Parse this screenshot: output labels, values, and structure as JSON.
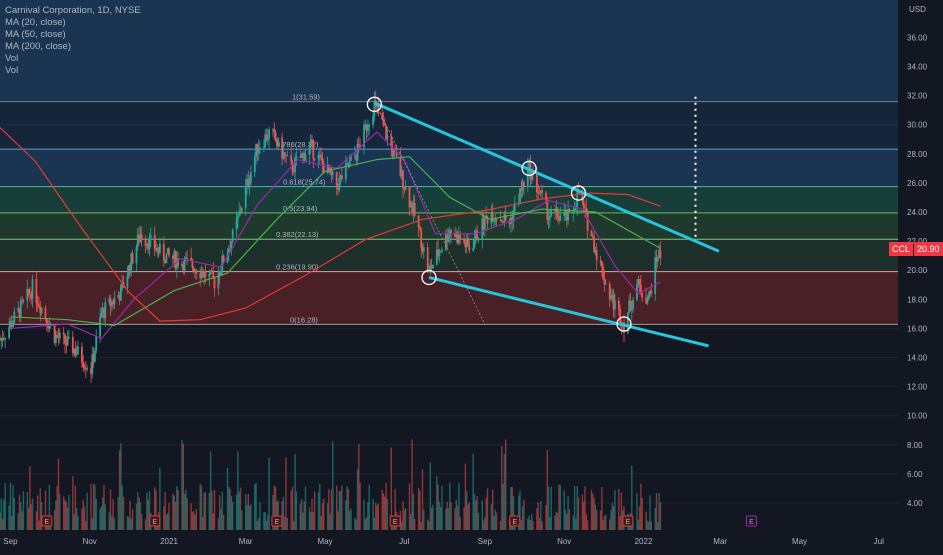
{
  "header": {
    "symbol_title": "Carnival Corporation, 1D, NYSE",
    "indicators": [
      "MA (20, close)",
      "MA (50, close)",
      "MA (200, close)",
      "Vol",
      "Vol"
    ],
    "currency": "USD",
    "ticker": "CCL",
    "last_price": "20.90"
  },
  "colors": {
    "background": "#131722",
    "up_candle": "#26a69a",
    "down_candle": "#ef5350",
    "ma20": "#9c27b0",
    "ma50": "#4caf50",
    "ma200": "#e53935",
    "trendline": "#26c6da",
    "zone_blue": "#1f4e79",
    "zone_teal": "#1b5e4a",
    "zone_green": "#2e5b38",
    "zone_red": "#6d1f24",
    "price_badge": "#f23645"
  },
  "chart_data": {
    "type": "candlestick",
    "title": "Carnival Corporation, 1D, NYSE",
    "y_axis": {
      "ticks": [
        "4.00",
        "6.00",
        "8.00",
        "10.00",
        "12.00",
        "14.00",
        "16.00",
        "18.00",
        "20.00",
        "22.00",
        "24.00",
        "26.00",
        "28.00",
        "30.00",
        "32.00",
        "34.00",
        "36.00"
      ],
      "range": [
        2.6,
        37.2
      ]
    },
    "x_axis": {
      "ticks": [
        "Sep",
        "Nov",
        "2021",
        "Mar",
        "May",
        "Jul",
        "Sep",
        "Nov",
        "2022",
        "Mar",
        "May",
        "Jul"
      ],
      "range": [
        "2020-08-24",
        "2022-07-20"
      ]
    },
    "fibonacci_levels": [
      {
        "label": "1(31.59)",
        "value": 31.59
      },
      {
        "label": "0.786(28.32)",
        "value": 28.32
      },
      {
        "label": "0.618(25.74)",
        "value": 25.74
      },
      {
        "label": "0.5(23.94)",
        "value": 23.94
      },
      {
        "label": "0.382(22.13)",
        "value": 22.13
      },
      {
        "label": "0.236(19.90)",
        "value": 19.9
      },
      {
        "label": "0(16.28)",
        "value": 16.28
      }
    ],
    "price_path": [
      {
        "date": "2020-08-24",
        "price": 15.2
      },
      {
        "date": "2020-09-10",
        "price": 17.5
      },
      {
        "date": "2020-09-18",
        "price": 18.8
      },
      {
        "date": "2020-10-05",
        "price": 15.5
      },
      {
        "date": "2020-10-20",
        "price": 14.6
      },
      {
        "date": "2020-11-02",
        "price": 13.2
      },
      {
        "date": "2020-11-10",
        "price": 17.0
      },
      {
        "date": "2020-11-25",
        "price": 18.5
      },
      {
        "date": "2020-12-10",
        "price": 22.5
      },
      {
        "date": "2020-12-28",
        "price": 21.0
      },
      {
        "date": "2021-01-20",
        "price": 20.3
      },
      {
        "date": "2021-02-05",
        "price": 19.2
      },
      {
        "date": "2021-02-20",
        "price": 22.5
      },
      {
        "date": "2021-03-10",
        "price": 28.5
      },
      {
        "date": "2021-03-20",
        "price": 29.5
      },
      {
        "date": "2021-04-05",
        "price": 27.0
      },
      {
        "date": "2021-04-20",
        "price": 28.5
      },
      {
        "date": "2021-05-10",
        "price": 25.8
      },
      {
        "date": "2021-05-25",
        "price": 28.0
      },
      {
        "date": "2021-06-08",
        "price": 31.4
      },
      {
        "date": "2021-06-25",
        "price": 27.5
      },
      {
        "date": "2021-07-10",
        "price": 23.5
      },
      {
        "date": "2021-07-20",
        "price": 19.9
      },
      {
        "date": "2021-08-05",
        "price": 22.8
      },
      {
        "date": "2021-08-20",
        "price": 21.5
      },
      {
        "date": "2021-09-05",
        "price": 24.0
      },
      {
        "date": "2021-09-20",
        "price": 23.3
      },
      {
        "date": "2021-10-05",
        "price": 27.0
      },
      {
        "date": "2021-10-20",
        "price": 23.8
      },
      {
        "date": "2021-11-05",
        "price": 23.6
      },
      {
        "date": "2021-11-12",
        "price": 25.3
      },
      {
        "date": "2021-11-25",
        "price": 21.5
      },
      {
        "date": "2021-12-05",
        "price": 18.5
      },
      {
        "date": "2021-12-17",
        "price": 16.3
      },
      {
        "date": "2021-12-27",
        "price": 19.0
      },
      {
        "date": "2022-01-05",
        "price": 18.0
      },
      {
        "date": "2022-01-12",
        "price": 21.2
      },
      {
        "date": "2022-01-14",
        "price": 20.9
      }
    ],
    "moving_averages": [
      {
        "name": "MA (20, close)",
        "points": [
          {
            "date": "2020-09-01",
            "price": 16.0
          },
          {
            "date": "2020-10-15",
            "price": 16.3
          },
          {
            "date": "2020-11-10",
            "price": 15.3
          },
          {
            "date": "2020-12-05",
            "price": 18.0
          },
          {
            "date": "2021-01-10",
            "price": 20.8
          },
          {
            "date": "2021-02-10",
            "price": 20.2
          },
          {
            "date": "2021-03-10",
            "price": 24.5
          },
          {
            "date": "2021-04-10",
            "price": 27.6
          },
          {
            "date": "2021-05-10",
            "price": 27.0
          },
          {
            "date": "2021-06-10",
            "price": 29.5
          },
          {
            "date": "2021-07-01",
            "price": 27.6
          },
          {
            "date": "2021-07-25",
            "price": 22.5
          },
          {
            "date": "2021-08-25",
            "price": 22.5
          },
          {
            "date": "2021-09-25",
            "price": 23.5
          },
          {
            "date": "2021-10-20",
            "price": 24.8
          },
          {
            "date": "2021-11-15",
            "price": 24.2
          },
          {
            "date": "2021-12-10",
            "price": 20.3
          },
          {
            "date": "2021-12-28",
            "price": 18.4
          },
          {
            "date": "2022-01-14",
            "price": 19.2
          }
        ]
      },
      {
        "name": "MA (50, close)",
        "points": [
          {
            "date": "2020-09-01",
            "price": 16.8
          },
          {
            "date": "2020-10-15",
            "price": 16.6
          },
          {
            "date": "2020-11-20",
            "price": 16.2
          },
          {
            "date": "2021-01-05",
            "price": 18.6
          },
          {
            "date": "2021-02-15",
            "price": 19.8
          },
          {
            "date": "2021-03-25",
            "price": 23.5
          },
          {
            "date": "2021-05-01",
            "price": 26.8
          },
          {
            "date": "2021-06-10",
            "price": 27.6
          },
          {
            "date": "2021-07-05",
            "price": 27.8
          },
          {
            "date": "2021-08-05",
            "price": 25.0
          },
          {
            "date": "2021-09-05",
            "price": 23.5
          },
          {
            "date": "2021-10-15",
            "price": 24.2
          },
          {
            "date": "2021-11-25",
            "price": 24.0
          },
          {
            "date": "2022-01-14",
            "price": 21.5
          }
        ]
      },
      {
        "name": "MA (200, close)",
        "points": [
          {
            "date": "2020-08-24",
            "price": 29.8
          },
          {
            "date": "2020-09-20",
            "price": 27.5
          },
          {
            "date": "2020-10-25",
            "price": 23.0
          },
          {
            "date": "2020-12-01",
            "price": 18.5
          },
          {
            "date": "2020-12-25",
            "price": 16.5
          },
          {
            "date": "2021-01-25",
            "price": 16.6
          },
          {
            "date": "2021-03-01",
            "price": 17.4
          },
          {
            "date": "2021-04-15",
            "price": 19.6
          },
          {
            "date": "2021-06-01",
            "price": 22.1
          },
          {
            "date": "2021-07-15",
            "price": 23.5
          },
          {
            "date": "2021-09-01",
            "price": 24.1
          },
          {
            "date": "2021-10-15",
            "price": 24.9
          },
          {
            "date": "2021-11-20",
            "price": 25.3
          },
          {
            "date": "2021-12-20",
            "price": 25.2
          },
          {
            "date": "2022-01-14",
            "price": 24.4
          }
        ]
      }
    ],
    "trendlines": [
      {
        "from": {
          "date": "2021-06-08",
          "price": 31.5
        },
        "to": {
          "date": "2022-02-28",
          "price": 21.3
        }
      },
      {
        "from": {
          "date": "2021-07-20",
          "price": 19.5
        },
        "to": {
          "date": "2022-02-20",
          "price": 14.8
        }
      }
    ],
    "marked_pivots": [
      {
        "date": "2021-06-08",
        "price": 31.4
      },
      {
        "date": "2021-10-05",
        "price": 27.0
      },
      {
        "date": "2021-11-12",
        "price": 25.3
      },
      {
        "date": "2021-07-20",
        "price": 19.5
      },
      {
        "date": "2021-12-17",
        "price": 16.3
      }
    ],
    "projection_line": {
      "date": "2022-02-10",
      "from": 22.3,
      "to": 32.2
    },
    "earnings_markers": [
      "2020-09-29",
      "2020-12-21",
      "2021-03-25",
      "2021-06-24",
      "2021-09-24",
      "2021-12-20",
      "2022-03-25"
    ]
  }
}
